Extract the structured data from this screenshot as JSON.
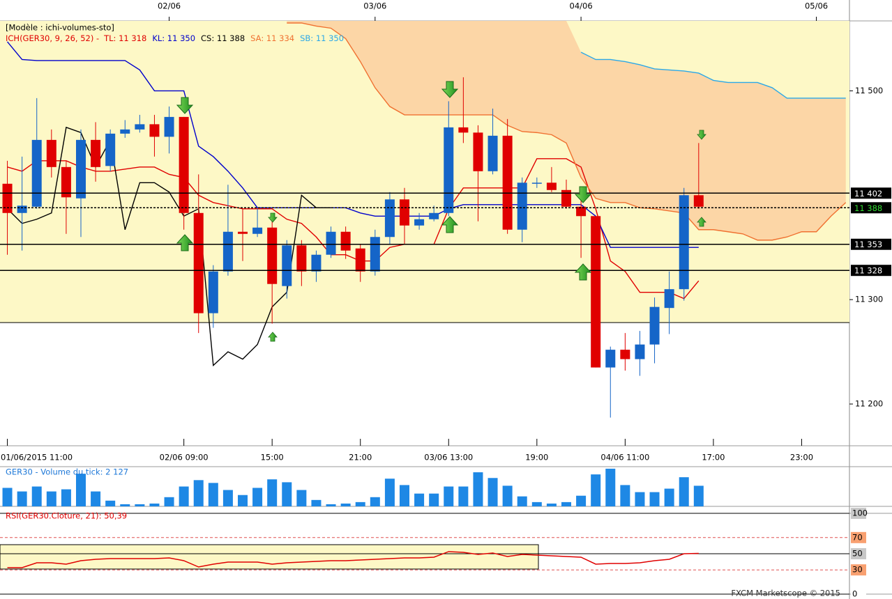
{
  "chart_data": [
    {
      "type": "candlestick",
      "header": "[Modèle : ichi-volumes-sto]",
      "indicator": "ICH(GER30, 9, 26, 52) -",
      "up_color": "#1565c8",
      "down_color": "#e00000",
      "zone_low": 11278,
      "zone_color": "#fdf8c6",
      "cloud_color": "#fcd6a6",
      "xlim": [
        -0.5,
        57.25
      ],
      "xticks": [
        {
          "value": 0,
          "label": "01/06/2015 11:00"
        },
        {
          "value": 12,
          "label": "02/06 09:00"
        },
        {
          "value": 18,
          "label": "15:00"
        },
        {
          "value": 24,
          "label": "21:00"
        },
        {
          "value": 30,
          "label": "03/06 13:00"
        },
        {
          "value": 36,
          "label": "19:00"
        },
        {
          "value": 42,
          "label": "04/06 11:00"
        },
        {
          "value": 48,
          "label": "17:00"
        },
        {
          "value": 54,
          "label": "23:00"
        }
      ],
      "top_xticks": [
        {
          "value": 11,
          "label": "02/06"
        },
        {
          "value": 25,
          "label": "03/06"
        },
        {
          "value": 39,
          "label": "04/06"
        },
        {
          "value": 55,
          "label": "05/06"
        }
      ],
      "ylim": [
        11160,
        11567
      ],
      "yticks": [
        {
          "value": 11200,
          "label": "11 200"
        },
        {
          "value": 11300,
          "label": "11 300"
        },
        {
          "value": 11500,
          "label": "11 500"
        }
      ],
      "levels": [
        {
          "value": 11402,
          "label": "11 402",
          "style": "solid",
          "label_color": "#ffffff"
        },
        {
          "value": 11388,
          "label": "11 388",
          "style": "dotted",
          "label_color": "#33dd33"
        },
        {
          "value": 11353,
          "label": "11 353",
          "style": "solid",
          "label_color": "#ffffff"
        },
        {
          "value": 11328,
          "label": "11 328",
          "style": "solid",
          "label_color": "#ffffff"
        }
      ],
      "open": [
        11411,
        11383,
        11389,
        11453,
        11427,
        11397,
        11453,
        11428,
        11459,
        11463,
        11468,
        11456,
        11475,
        11383,
        11287,
        11327,
        11365,
        11363,
        11369,
        11313,
        11352,
        11327,
        11343,
        11365,
        11349,
        11327,
        11360,
        11396,
        11371,
        11377,
        11383,
        11465,
        11460,
        11423,
        11457,
        11367,
        11411,
        11412,
        11405,
        11389,
        11380,
        11235,
        11252,
        11243,
        11257,
        11292,
        11310,
        11400
      ],
      "high": [
        11433,
        11437,
        11493,
        11463,
        11433,
        11463,
        11470,
        11463,
        11472,
        11477,
        11477,
        11485,
        11475,
        11420,
        11333,
        11410,
        11387,
        11387,
        11375,
        11357,
        11357,
        11347,
        11370,
        11370,
        11353,
        11367,
        11403,
        11407,
        11383,
        11390,
        11490,
        11513,
        11467,
        11483,
        11473,
        11417,
        11417,
        11427,
        11415,
        11403,
        11380,
        11255,
        11268,
        11270,
        11302,
        11327,
        11407,
        11450
      ],
      "low": [
        11343,
        11347,
        11387,
        11417,
        11363,
        11360,
        11413,
        11423,
        11455,
        11460,
        11437,
        11440,
        11367,
        11268,
        11273,
        11323,
        11337,
        11360,
        11277,
        11301,
        11313,
        11317,
        11340,
        11339,
        11317,
        11323,
        11353,
        11353,
        11367,
        11375,
        11380,
        11450,
        11375,
        11420,
        11363,
        11355,
        11407,
        11403,
        11387,
        11340,
        11235,
        11187,
        11232,
        11227,
        11239,
        11267,
        11299,
        11387
      ],
      "close": [
        11383,
        11390,
        11453,
        11427,
        11398,
        11453,
        11427,
        11459,
        11463,
        11468,
        11456,
        11475,
        11383,
        11287,
        11327,
        11365,
        11363,
        11369,
        11315,
        11352,
        11327,
        11343,
        11365,
        11347,
        11327,
        11360,
        11396,
        11371,
        11377,
        11383,
        11465,
        11460,
        11423,
        11457,
        11367,
        11412,
        11412,
        11405,
        11389,
        11380,
        11235,
        11252,
        11243,
        11257,
        11293,
        11310,
        11400,
        11389
      ],
      "series": [
        {
          "name": "TL: 11 318",
          "color": "#e00000",
          "values": [
            11427,
            11423,
            11433,
            11433,
            11433,
            11427,
            11423,
            11423,
            11425,
            11427,
            11427,
            11420,
            11417,
            11400,
            11393,
            11390,
            11387,
            11387,
            11387,
            11377,
            11373,
            11360,
            11343,
            11343,
            11337,
            11337,
            11350,
            11353,
            11353,
            11353,
            11387,
            11407,
            11407,
            11407,
            11407,
            11407,
            11435,
            11435,
            11435,
            11427,
            11387,
            11337,
            11327,
            11307,
            11307,
            11307,
            11301,
            11318,
            null,
            null,
            null,
            null,
            null,
            null,
            null,
            null,
            null,
            null
          ]
        },
        {
          "name": "KL: 11 350",
          "color": "#0000cc",
          "values": [
            11547,
            11530,
            11529,
            11529,
            11529,
            11529,
            11529,
            11529,
            11529,
            11520,
            11500,
            11500,
            11500,
            11447,
            11437,
            11423,
            11407,
            11388,
            11388,
            11388,
            11388,
            11388,
            11388,
            11388,
            11383,
            11380,
            11380,
            11380,
            11380,
            11380,
            11387,
            11391,
            11391,
            11391,
            11391,
            11391,
            11391,
            11391,
            11391,
            11391,
            11380,
            11350,
            11350,
            11350,
            11350,
            11350,
            11350,
            11350,
            null,
            null,
            null,
            null,
            null,
            null,
            null,
            null,
            null,
            null
          ]
        },
        {
          "name": "CS: 11 388",
          "color": "#000000",
          "values": [
            11387,
            11373,
            11377,
            11383,
            11465,
            11460,
            11427,
            11453,
            11367,
            11412,
            11412,
            11403,
            11380,
            11387,
            11237,
            11250,
            11243,
            11257,
            11293,
            11307,
            11400,
            11388,
            11388,
            null,
            null,
            null,
            null,
            null,
            null,
            null,
            null,
            null,
            null,
            null,
            null,
            null,
            null,
            null,
            null,
            null,
            null,
            null,
            null,
            null,
            null,
            null,
            null,
            null,
            null,
            null,
            null,
            null,
            null,
            null,
            null,
            null,
            null,
            null
          ]
        },
        {
          "name": "SA: 11 334",
          "color": "#f07030",
          "values": [
            null,
            null,
            null,
            null,
            null,
            null,
            null,
            null,
            null,
            null,
            null,
            null,
            null,
            null,
            null,
            null,
            null,
            null,
            null,
            11565,
            11565,
            11562,
            11560,
            11550,
            11528,
            11503,
            11485,
            11477,
            11477,
            11477,
            11477,
            11477,
            11477,
            11477,
            11467,
            11461,
            11460,
            11458,
            11450,
            11417,
            11397,
            11393,
            11393,
            11388,
            11387,
            11385,
            11383,
            11367,
            11367,
            11365,
            11363,
            11357,
            11357,
            11360,
            11365,
            11365,
            11380,
            11393
          ]
        },
        {
          "name": "SB: 11 350",
          "color": "#2aa8e8",
          "values": [
            null,
            null,
            null,
            null,
            null,
            null,
            null,
            null,
            null,
            null,
            null,
            null,
            null,
            null,
            null,
            null,
            null,
            null,
            null,
            null,
            null,
            null,
            null,
            null,
            null,
            null,
            null,
            null,
            null,
            null,
            null,
            null,
            null,
            null,
            null,
            null,
            null,
            null,
            null,
            11537,
            11530,
            11530,
            11528,
            11525,
            11521,
            11520,
            11519,
            11517,
            11510,
            11508,
            11508,
            11508,
            11503,
            11493,
            11493,
            11493,
            11493,
            11493
          ]
        }
      ]
    },
    {
      "type": "bar",
      "title": "GER30 - Volume du tick: 2 127",
      "title_color": "#1e78d8",
      "color": "#1e88e5",
      "xlim": [
        -0.5,
        57.25
      ],
      "ylim": [
        0,
        4100
      ],
      "values": [
        1910,
        1540,
        2050,
        1540,
        1760,
        3370,
        1540,
        590,
        220,
        220,
        290,
        950,
        2050,
        2710,
        2420,
        1690,
        1170,
        1910,
        2790,
        2490,
        1690,
        660,
        220,
        290,
        440,
        950,
        2860,
        2200,
        1320,
        1320,
        2050,
        2050,
        3520,
        2930,
        2130,
        1030,
        440,
        290,
        440,
        1100,
        3300,
        3890,
        2200,
        1470,
        1470,
        1830,
        3010,
        2127
      ]
    },
    {
      "type": "line",
      "title": "RSI(GER30.Cloture, 21): 50,39",
      "title_color": "#e00000",
      "color": "#e00000",
      "xlim": [
        -0.5,
        57.25
      ],
      "ylim": [
        0,
        100
      ],
      "yticks": [
        0,
        30,
        50,
        70,
        100
      ],
      "ytick_colors": [
        "#ffffff",
        "#f8a070",
        "#c8c8c8",
        "#f8a070",
        "#c8c8c8"
      ],
      "ytick_styles": [
        "solid",
        "dashed",
        "solid",
        "dashed",
        "solid"
      ],
      "values": [
        32.8,
        32.8,
        38.8,
        38.8,
        37.1,
        41.4,
        43.1,
        44.0,
        44.0,
        44.0,
        44.0,
        44.8,
        41.4,
        33.6,
        37.1,
        39.7,
        39.7,
        39.7,
        37.1,
        38.8,
        39.7,
        40.5,
        41.4,
        41.4,
        42.2,
        43.1,
        44.0,
        44.8,
        44.8,
        45.7,
        52.6,
        51.7,
        49.1,
        50.9,
        46.6,
        49.1,
        48.3,
        47.4,
        46.6,
        45.7,
        37.1,
        37.9,
        37.9,
        38.8,
        41.4,
        43.1,
        50.0,
        50.39
      ]
    }
  ],
  "footer": "FXCM Marketscope © 2015"
}
